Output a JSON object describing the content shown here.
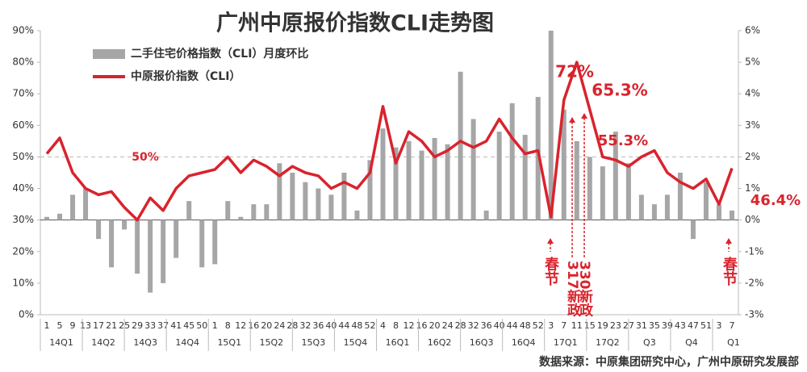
{
  "chart_data": {
    "type": "bar",
    "title": "广州中原报价指数CLI走势图",
    "source": "数据来源：中原集团研究中心，广州中原研究发展部",
    "categories": [
      "1",
      "5",
      "9",
      "13",
      "17",
      "21",
      "25",
      "29",
      "33",
      "37",
      "41",
      "45",
      "50",
      "1",
      "8",
      "12",
      "16",
      "20",
      "24",
      "28",
      "32",
      "36",
      "40",
      "44",
      "48",
      "52",
      "4",
      "8",
      "12",
      "16",
      "20",
      "24",
      "28",
      "32",
      "36",
      "40",
      "44",
      "48",
      "52",
      "3",
      "7",
      "11",
      "15",
      "19",
      "23",
      "27",
      "31",
      "35",
      "39",
      "43",
      "47",
      "51",
      "3",
      "7"
    ],
    "quarters": [
      "14Q1",
      "14Q2",
      "14Q3",
      "14Q4",
      "15Q1",
      "15Q2",
      "15Q3",
      "15Q4",
      "16Q1",
      "16Q2",
      "16Q3",
      "16Q4",
      "17Q1",
      "17Q2",
      "Q3",
      "Q4",
      "Q1"
    ],
    "series": [
      {
        "name": "二手住宅价格指数（CLI）月度环比",
        "type": "bar",
        "axis": "y2",
        "color": "#a6a6a6",
        "values": [
          0.1,
          0.2,
          0.8,
          1.0,
          -0.6,
          -1.5,
          -0.3,
          -1.7,
          -2.3,
          -2.0,
          -1.2,
          0.6,
          -1.5,
          -1.4,
          0.6,
          0.1,
          0.5,
          0.5,
          1.8,
          1.5,
          1.2,
          1.0,
          0.8,
          1.5,
          0.3,
          1.9,
          2.9,
          2.3,
          2.5,
          2.2,
          2.6,
          2.4,
          4.7,
          3.2,
          0.3,
          2.8,
          3.7,
          2.7,
          3.9,
          6.0,
          3.5,
          2.5,
          2.0,
          1.7,
          2.8,
          1.8,
          0.8,
          0.5,
          0.8,
          1.5,
          -0.6,
          1.2,
          0.5,
          0.3
        ]
      },
      {
        "name": "中原报价指数（CLI）",
        "type": "line",
        "color": "#d9232d",
        "values": [
          51,
          56,
          45,
          40,
          38,
          39,
          34,
          30,
          37,
          33,
          40,
          44,
          45,
          46,
          50,
          45,
          49,
          47,
          44,
          47,
          45,
          44,
          40,
          42,
          40,
          45,
          66,
          48,
          58,
          55,
          50,
          52,
          55,
          53,
          55,
          62,
          56,
          51,
          52,
          31,
          68,
          80,
          65,
          50,
          49,
          47,
          50,
          52,
          45,
          42,
          40,
          43,
          35,
          46.4
        ]
      }
    ],
    "ylim": [
      0,
      90
    ],
    "yticks": [
      {
        "value": 0,
        "label": "0%"
      },
      {
        "value": 10,
        "label": "10%"
      },
      {
        "value": 20,
        "label": "20%"
      },
      {
        "value": 30,
        "label": "30%"
      },
      {
        "value": 40,
        "label": "40%"
      },
      {
        "value": 50,
        "label": "50%"
      },
      {
        "value": 60,
        "label": "60%"
      },
      {
        "value": 70,
        "label": "70%"
      },
      {
        "value": 80,
        "label": "80%"
      },
      {
        "value": 90,
        "label": "90%"
      }
    ],
    "y2lim": [
      -3,
      6
    ],
    "y2ticks": [
      {
        "value": -3,
        "label": "-3%"
      },
      {
        "value": -2,
        "label": "-2%"
      },
      {
        "value": -1,
        "label": "-1%"
      },
      {
        "value": 0,
        "label": "0%"
      },
      {
        "value": 1,
        "label": "1%"
      },
      {
        "value": 2,
        "label": "2%"
      },
      {
        "value": 3,
        "label": "3%"
      },
      {
        "value": 4,
        "label": "4%"
      },
      {
        "value": 5,
        "label": "5%"
      },
      {
        "value": 6,
        "label": "6%"
      }
    ],
    "reference_line": 50,
    "annotations": [
      "50%",
      "72%",
      "65.3%",
      "55.3%",
      "46.4%",
      "春节",
      "317新政",
      "330新政",
      "春节"
    ]
  }
}
